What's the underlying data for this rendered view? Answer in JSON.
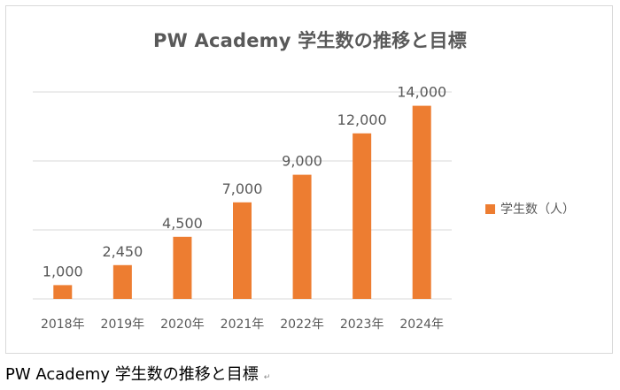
{
  "caption": "PW Academy 学生数の推移と目標",
  "caption_mark": "↵",
  "colors": {
    "bar": "#ED7D31",
    "grid": "#d9d9d9",
    "text": "#595959"
  },
  "chart_data": {
    "type": "bar",
    "title": "PW Academy 学生数の推移と目標",
    "xlabel": "",
    "ylabel": "",
    "categories": [
      "2018年",
      "2019年",
      "2020年",
      "2021年",
      "2022年",
      "2023年",
      "2024年"
    ],
    "series": [
      {
        "name": "学生数（人）",
        "values": [
          1000,
          2450,
          4500,
          7000,
          9000,
          12000,
          14000
        ],
        "labels": [
          "1,000",
          "2,450",
          "4,500",
          "7,000",
          "9,000",
          "12,000",
          "14,000"
        ]
      }
    ],
    "ylim": [
      0,
      15000
    ],
    "grid": true,
    "legend": "right"
  }
}
